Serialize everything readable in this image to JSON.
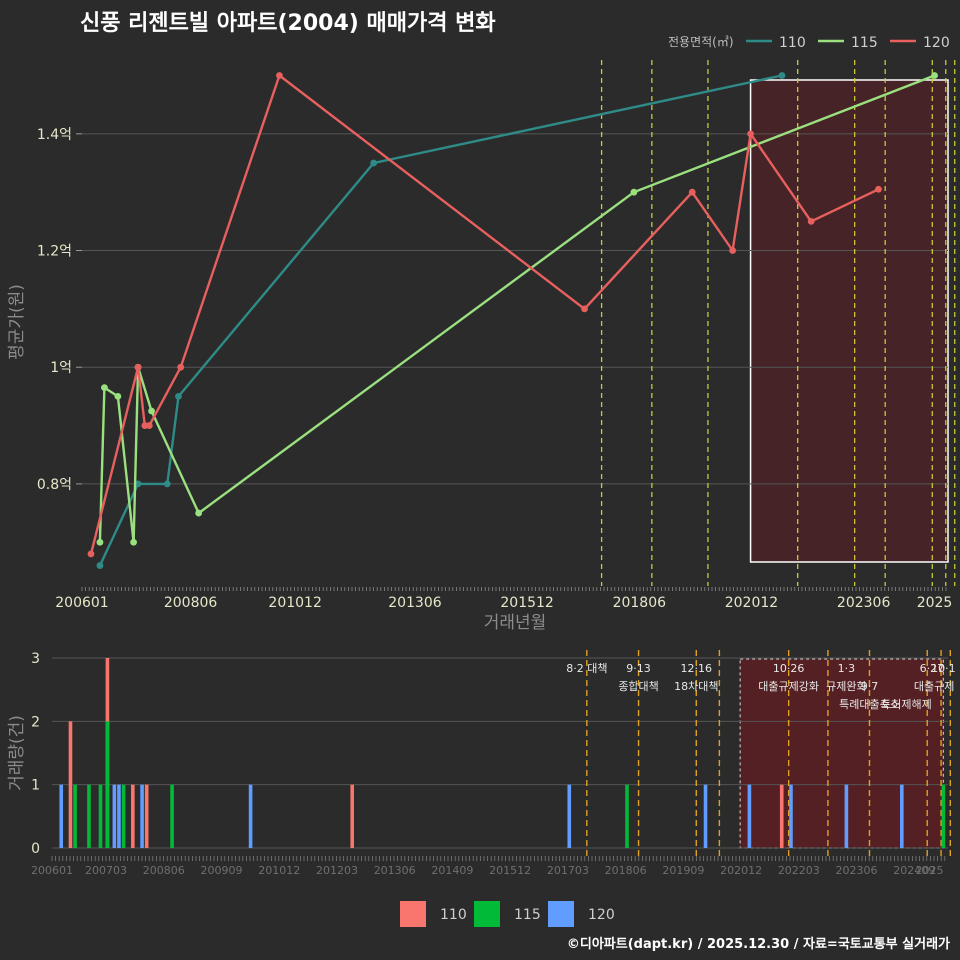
{
  "colors": {
    "s110_line": "#2e8b87",
    "s115_line": "#9be07f",
    "s120_line": "#e8605e",
    "s110_bar": "#f8766d",
    "s115_bar": "#00ba38",
    "s120_bar": "#619cff",
    "policy": "#c9c93a",
    "policy_bottom": "#e0a020",
    "grid": "#555555"
  },
  "header": {
    "title": "신풍 리젠트빌 아파트(2004) 매매가격 변화",
    "legend_title": "전용면적(㎡)"
  },
  "footer": {
    "credit": "©디아파트(dapt.kr) / 2025.12.30 / 자료=국토교통부 실거래가"
  },
  "chart_data": [
    {
      "type": "line",
      "title": "신풍 리젠트빌 아파트(2004) 매매가격 변화",
      "xlabel": "거래년월",
      "ylabel": "평균가(원)",
      "xlim": [
        2006.0,
        2025.3
      ],
      "ylim": [
        0.625,
        1.53
      ],
      "y_ticks": [
        0.8,
        1.0,
        1.2,
        1.4
      ],
      "y_tick_labels": [
        "0.8억",
        "1억",
        "1.2억",
        "1.4억"
      ],
      "x_ticks": [
        2006.0,
        2008.42,
        2010.75,
        2013.42,
        2015.92,
        2018.42,
        2020.92,
        2023.42,
        2025.0
      ],
      "x_tick_labels": [
        "200601",
        "200806",
        "201012",
        "201306",
        "201512",
        "201806",
        "202012",
        "202306",
        "2025"
      ],
      "legend_position": "top-right",
      "series": [
        {
          "name": "110",
          "points": [
            [
              2006.4,
              0.66
            ],
            [
              2007.25,
              0.8
            ],
            [
              2007.9,
              0.8
            ],
            [
              2008.15,
              0.95
            ],
            [
              2012.5,
              1.35
            ],
            [
              2021.6,
              1.5
            ]
          ]
        },
        {
          "name": "115",
          "points": [
            [
              2006.4,
              0.7
            ],
            [
              2006.5,
              0.965
            ],
            [
              2006.8,
              0.95
            ],
            [
              2007.15,
              0.7
            ],
            [
              2007.25,
              1.0
            ],
            [
              2007.55,
              0.925
            ],
            [
              2008.6,
              0.75
            ],
            [
              2018.3,
              1.3
            ],
            [
              2025.0,
              1.5
            ]
          ]
        },
        {
          "name": "120",
          "points": [
            [
              2006.2,
              0.68
            ],
            [
              2007.25,
              1.0
            ],
            [
              2007.4,
              0.9
            ],
            [
              2007.5,
              0.9
            ],
            [
              2008.2,
              1.0
            ],
            [
              2010.4,
              1.5
            ],
            [
              2017.2,
              1.1
            ],
            [
              2019.6,
              1.3
            ],
            [
              2020.5,
              1.2
            ],
            [
              2020.9,
              1.4
            ],
            [
              2022.25,
              1.25
            ],
            [
              2023.75,
              1.305
            ]
          ]
        }
      ],
      "policy_lines": [
        2017.58,
        2018.7,
        2019.95,
        2021.95,
        2023.22,
        2023.9,
        2024.95,
        2025.25,
        2025.45
      ],
      "highlight_range": [
        2020.9,
        2025.3
      ]
    },
    {
      "type": "bar",
      "xlabel": "",
      "ylabel": "거래량(건)",
      "ylim": [
        0,
        3
      ],
      "y_ticks": [
        0,
        1,
        2,
        3
      ],
      "x_ticks": [
        2006.0,
        2007.17,
        2008.42,
        2009.67,
        2010.92,
        2012.17,
        2013.42,
        2014.67,
        2015.92,
        2017.17,
        2018.42,
        2019.67,
        2020.92,
        2022.17,
        2023.42,
        2024.67,
        2025.0
      ],
      "x_tick_labels": [
        "200601",
        "200703",
        "200806",
        "200909",
        "201012",
        "201203",
        "201306",
        "201409",
        "201512",
        "201703",
        "201806",
        "201909",
        "202012",
        "202203",
        "202306",
        "202409",
        "2025"
      ],
      "legend_position": "bottom",
      "legend": [
        "110",
        "115",
        "120"
      ],
      "bars": [
        {
          "x": 2006.2,
          "series": "120",
          "value": 1
        },
        {
          "x": 2006.4,
          "series": "110",
          "value": 2
        },
        {
          "x": 2006.5,
          "series": "115",
          "value": 1
        },
        {
          "x": 2006.8,
          "series": "115",
          "value": 1
        },
        {
          "x": 2007.05,
          "series": "115",
          "value": 1
        },
        {
          "x": 2007.2,
          "series": "110",
          "value": 3
        },
        {
          "x": 2007.2,
          "series": "115",
          "value": 2
        },
        {
          "x": 2007.35,
          "series": "120",
          "value": 1
        },
        {
          "x": 2007.45,
          "series": "120",
          "value": 1
        },
        {
          "x": 2007.55,
          "series": "115",
          "value": 1
        },
        {
          "x": 2007.75,
          "series": "110",
          "value": 1
        },
        {
          "x": 2007.95,
          "series": "120",
          "value": 1
        },
        {
          "x": 2008.05,
          "series": "110",
          "value": 1
        },
        {
          "x": 2008.6,
          "series": "115",
          "value": 1
        },
        {
          "x": 2010.3,
          "series": "120",
          "value": 1
        },
        {
          "x": 2012.5,
          "series": "110",
          "value": 1
        },
        {
          "x": 2017.2,
          "series": "120",
          "value": 1
        },
        {
          "x": 2018.45,
          "series": "115",
          "value": 1
        },
        {
          "x": 2020.15,
          "series": "120",
          "value": 1
        },
        {
          "x": 2021.1,
          "series": "120",
          "value": 1
        },
        {
          "x": 2021.8,
          "series": "110",
          "value": 1
        },
        {
          "x": 2022.0,
          "series": "120",
          "value": 1
        },
        {
          "x": 2023.2,
          "series": "120",
          "value": 1
        },
        {
          "x": 2024.4,
          "series": "120",
          "value": 1
        },
        {
          "x": 2025.3,
          "series": "115",
          "value": 1
        }
      ],
      "policy_lines": [
        2017.58,
        2018.7,
        2019.95,
        2020.45,
        2021.95,
        2022.8,
        2023.7,
        2024.95,
        2025.25,
        2025.45
      ],
      "annotations": [
        {
          "x": 2017.58,
          "row": 0,
          "text": "8·2 대책"
        },
        {
          "x": 2018.7,
          "row": 0,
          "text": "9·13"
        },
        {
          "x": 2018.7,
          "row": 1,
          "text": "종합대책"
        },
        {
          "x": 2019.95,
          "row": 0,
          "text": "12·16"
        },
        {
          "x": 2019.95,
          "row": 1,
          "text": "18차대책"
        },
        {
          "x": 2021.95,
          "row": 0,
          "text": "10·26"
        },
        {
          "x": 2021.95,
          "row": 1,
          "text": "대출규제강화"
        },
        {
          "x": 2023.2,
          "row": 0,
          "text": "1·3"
        },
        {
          "x": 2023.2,
          "row": 1,
          "text": "규제완화"
        },
        {
          "x": 2023.7,
          "row": 1,
          "text": "9·7"
        },
        {
          "x": 2023.7,
          "row": 2,
          "text": "특례대출축소"
        },
        {
          "x": 2024.5,
          "row": 2,
          "text": "토허제해제"
        },
        {
          "x": 2025.05,
          "row": 0,
          "text": "6·27"
        },
        {
          "x": 2025.3,
          "row": 0,
          "text": "10·1"
        },
        {
          "x": 2025.1,
          "row": 1,
          "text": "대출규제"
        }
      ],
      "highlight_range": [
        2020.9,
        2025.3
      ]
    }
  ]
}
